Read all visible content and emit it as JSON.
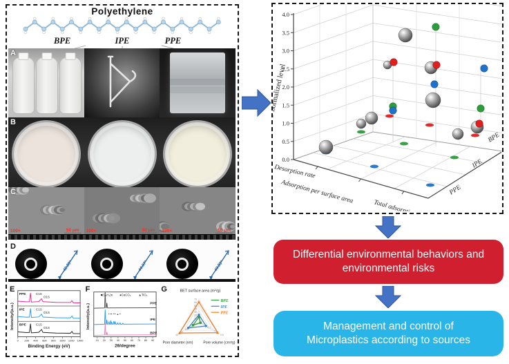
{
  "colors": {
    "arrow": "#4472c4",
    "arrow_edge": "#2f5597",
    "red_box": "#d02030",
    "cyan_box": "#29b5e8",
    "green": "#2e9b3c",
    "red": "#e01f1f",
    "blue": "#1f72c8",
    "xps": [
      "#e8259c",
      "#2a9df0",
      "#222222"
    ],
    "xrd": [
      "#555555",
      "#2a9df0",
      "#e87fc0"
    ],
    "radar": [
      "#2e9b3c",
      "#3f7fbf",
      "#f07820"
    ]
  },
  "left_panel": {
    "title": "Polyethylene",
    "materials": [
      "BPE",
      "IPE",
      "PPE"
    ],
    "panels": {
      "a": "A",
      "b": "B",
      "c": "C",
      "d": "D",
      "e": "E",
      "f": "F",
      "g": "G"
    },
    "sem": {
      "mag": "100×",
      "scale": "50 μm"
    },
    "contact_angles": [
      "42.89°",
      "44.67°",
      "43.83°"
    ]
  },
  "xps": {
    "panel": "E",
    "series": [
      "PPE",
      "IPE",
      "BPE"
    ],
    "peaks": [
      "C1S",
      "O1S"
    ],
    "xlabel": "Binding Energy (eV)",
    "ylabel": "Intensity/(a.u.)",
    "xticks": [
      0,
      200,
      400,
      600,
      800,
      1000,
      1200,
      1400
    ]
  },
  "xrd": {
    "panel": "F",
    "legend": [
      "■(C₂H₄)n",
      "●CaCO₃",
      "▲TiO₂"
    ],
    "series": [
      "PPE",
      "IPE",
      "BPE"
    ],
    "xlabel": "2θ/degree",
    "ylabel": "Intensity(a.u.)",
    "xticks": [
      10,
      20,
      30,
      40,
      50,
      60,
      70,
      80,
      90
    ]
  },
  "radar": {
    "panel": "G",
    "axes": [
      "BET surface area (m²/g)",
      "Pore diameter (nm)",
      "Pore volume (cm³/g)"
    ],
    "max": [
      70,
      40,
      0.6
    ],
    "ticks": [
      [
        "10",
        "20",
        "30",
        "40",
        "50",
        "60",
        "70"
      ],
      [
        "10",
        "20",
        "30",
        "40"
      ],
      [
        "0.2",
        "0.4",
        "0.6"
      ]
    ],
    "series": [
      {
        "name": "BPE",
        "values": [
          15,
          12,
          0.05
        ]
      },
      {
        "name": "IPE",
        "values": [
          22,
          22,
          0.22
        ]
      },
      {
        "name": "PPE",
        "values": [
          62,
          40,
          0.58
        ]
      }
    ]
  },
  "scatter3d": {
    "zlabel": "SD-normalized level",
    "zticks": [
      "4.0",
      "3.5",
      "3.0",
      "2.5",
      "2.0",
      "1.5",
      "1.0",
      "0.5",
      "0.0"
    ],
    "x_categories": [
      "Desorption rate",
      "Adsorption per surface area",
      "Total adsorption"
    ],
    "depth_categories": [
      "PPE",
      "IPE",
      "BPE"
    ],
    "spheres": [
      [
        192,
        45,
        10
      ],
      [
        166,
        88,
        6
      ],
      [
        229,
        92,
        9
      ],
      [
        232,
        139,
        11
      ],
      [
        143,
        165,
        9
      ],
      [
        128,
        173,
        7
      ],
      [
        296,
        178,
        9
      ],
      [
        268,
        188,
        8
      ],
      [
        77,
        207,
        10
      ]
    ],
    "dots": {
      "green": [
        [
          236,
          33
        ],
        [
          174,
          148
        ],
        [
          301,
          151
        ]
      ],
      "red": [
        [
          175,
          84
        ],
        [
          237,
          88
        ],
        [
          299,
          173
        ]
      ],
      "blue": [
        [
          306,
          93
        ],
        [
          234,
          116
        ],
        [
          174,
          154
        ]
      ]
    },
    "floor_dots": {
      "red": [
        [
          169,
          162
        ],
        [
          227,
          175
        ],
        [
          293,
          190
        ]
      ],
      "green": [
        [
          128,
          185
        ],
        [
          190,
          202
        ],
        [
          263,
          222
        ]
      ],
      "blue": [
        [
          77,
          215
        ],
        [
          147,
          235
        ],
        [
          228,
          262
        ]
      ]
    },
    "stems": [
      [
        174,
        84,
        200
      ],
      [
        236,
        30,
        206
      ],
      [
        301,
        88,
        190
      ]
    ]
  },
  "flow": {
    "red_lines": [
      "Differential environmental behaviors and",
      "environmental risks"
    ],
    "cyan_lines": [
      "Management and control of",
      "Microplastics according to sources"
    ]
  },
  "chart_data": [
    {
      "type": "scatter",
      "subtype": "3d-category",
      "zlabel": "SD-normalized level",
      "zlim": [
        0,
        4
      ],
      "x_categories": [
        "Desorption rate",
        "Adsorption per surface area",
        "Total adsorption"
      ],
      "depth_categories": [
        "PPE",
        "IPE",
        "BPE"
      ],
      "note": "approximate SD-normalized levels read from plot",
      "points": [
        {
          "color": "gray",
          "z": 3.4
        },
        {
          "color": "gray",
          "z": 2.6
        },
        {
          "color": "gray",
          "z": 2.5
        },
        {
          "color": "gray",
          "z": 1.6
        },
        {
          "color": "gray",
          "z": 1.15
        },
        {
          "color": "gray",
          "z": 1.0
        },
        {
          "color": "gray",
          "z": 0.9
        },
        {
          "color": "gray",
          "z": 0.7
        },
        {
          "color": "gray",
          "z": 0.35
        },
        {
          "color": "green",
          "z": 3.65
        },
        {
          "color": "green",
          "z": 1.5
        },
        {
          "color": "green",
          "z": 1.4
        },
        {
          "color": "red",
          "z": 2.7
        },
        {
          "color": "red",
          "z": 2.6
        },
        {
          "color": "red",
          "z": 1.0
        },
        {
          "color": "blue",
          "z": 2.5
        },
        {
          "color": "blue",
          "z": 2.1
        },
        {
          "color": "blue",
          "z": 1.35
        }
      ]
    },
    {
      "type": "line",
      "title": "XPS survey",
      "xlabel": "Binding Energy (eV)",
      "xlim": [
        0,
        1400
      ],
      "peaks": {
        "C1S": 285,
        "O1S": 532
      },
      "series": [
        "PPE",
        "IPE",
        "BPE"
      ]
    },
    {
      "type": "line",
      "title": "XRD",
      "xlabel": "2θ/degree",
      "xlim": [
        5,
        95
      ],
      "main_peaks": [
        21.5,
        23.9
      ],
      "series": [
        "PPE",
        "IPE",
        "BPE"
      ]
    },
    {
      "type": "radar",
      "axes": [
        "BET surface area (m²/g)",
        "Pore diameter (nm)",
        "Pore volume (cm³/g)"
      ],
      "max": [
        70,
        40,
        0.6
      ],
      "series": [
        {
          "name": "BPE",
          "values": [
            15,
            12,
            0.05
          ]
        },
        {
          "name": "IPE",
          "values": [
            22,
            22,
            0.22
          ]
        },
        {
          "name": "PPE",
          "values": [
            62,
            40,
            0.58
          ]
        }
      ]
    }
  ]
}
